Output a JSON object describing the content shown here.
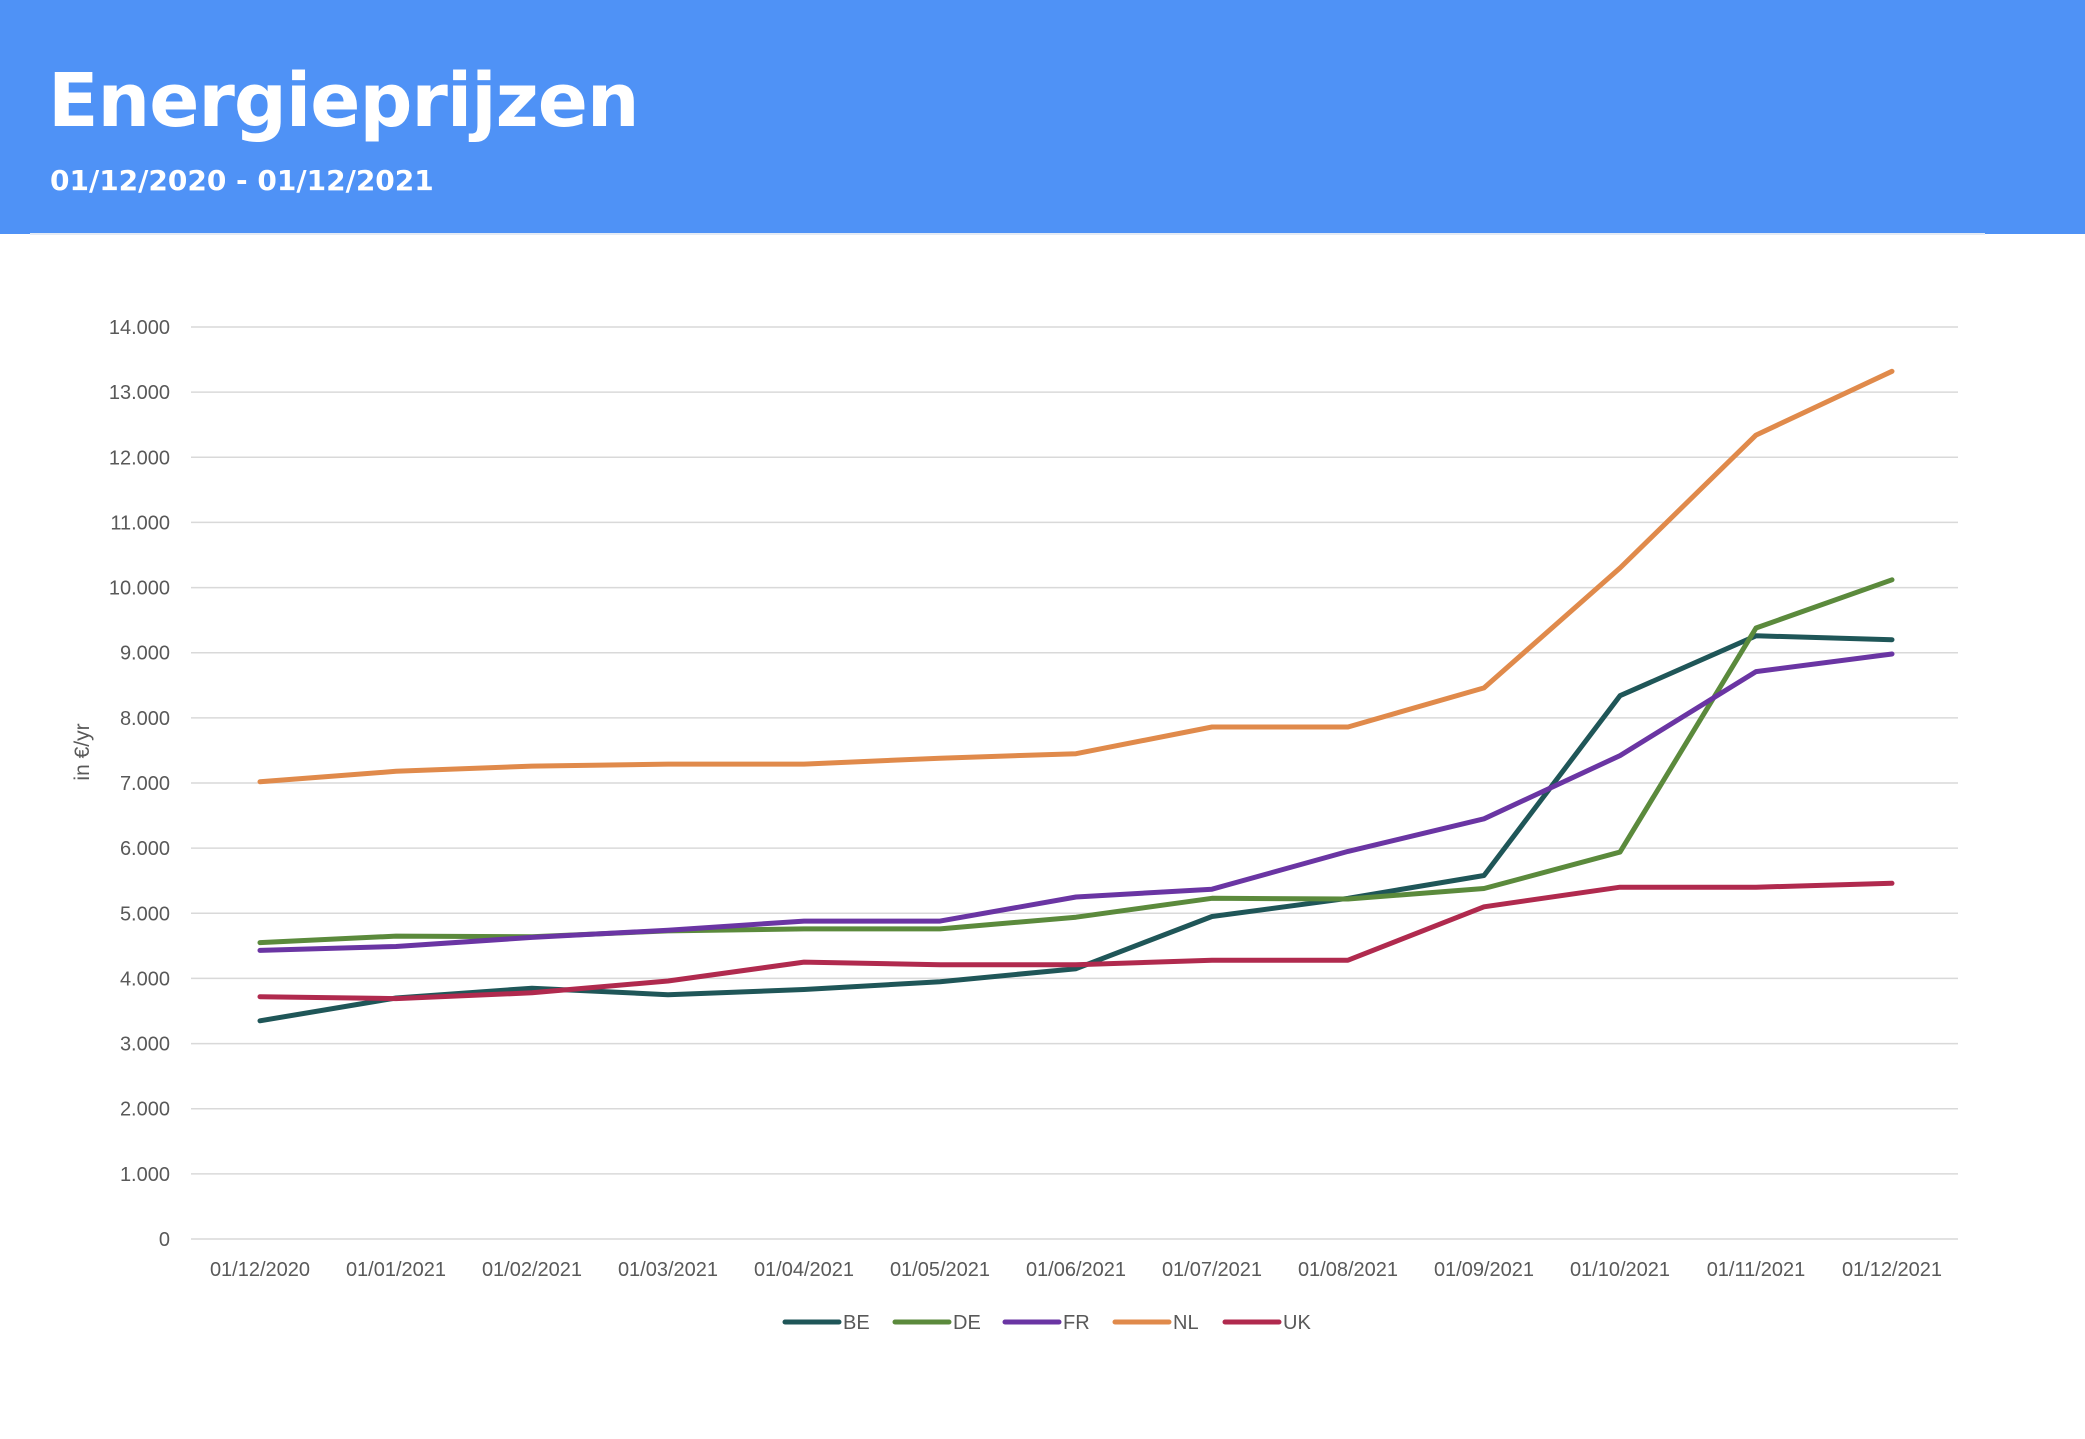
{
  "header": {
    "title": "Energieprijzen",
    "subtitle": "01/12/2020 - 01/12/2021"
  },
  "colors": {
    "header_background": "#4f92f6",
    "header_text": "#ffffff",
    "gridline": "#d9d9d9",
    "axis_text": "#595959"
  },
  "chart_data": {
    "type": "line",
    "title": "",
    "xlabel": "",
    "ylabel": "in €/yr",
    "ylim": [
      0,
      14000
    ],
    "yticks": [
      0,
      1000,
      2000,
      3000,
      4000,
      5000,
      6000,
      7000,
      8000,
      9000,
      10000,
      11000,
      12000,
      13000,
      14000
    ],
    "ytick_labels": [
      "0",
      "1.000",
      "2.000",
      "3.000",
      "4.000",
      "5.000",
      "6.000",
      "7.000",
      "8.000",
      "9.000",
      "10.000",
      "11.000",
      "12.000",
      "13.000",
      "14.000"
    ],
    "grid": true,
    "legend_position": "bottom",
    "categories": [
      "01/12/2020",
      "01/01/2021",
      "01/02/2021",
      "01/03/2021",
      "01/04/2021",
      "01/05/2021",
      "01/06/2021",
      "01/07/2021",
      "01/08/2021",
      "01/09/2021",
      "01/10/2021",
      "01/11/2021",
      "01/12/2021"
    ],
    "series": [
      {
        "name": "BE",
        "color": "#1f5658",
        "values": [
          3350,
          3700,
          3850,
          3750,
          3830,
          3950,
          4150,
          4950,
          5230,
          5580,
          8340,
          9260,
          9200
        ]
      },
      {
        "name": "DE",
        "color": "#5b8a3c",
        "values": [
          4550,
          4650,
          4640,
          4730,
          4760,
          4760,
          4940,
          5230,
          5220,
          5380,
          5940,
          9380,
          10120
        ]
      },
      {
        "name": "FR",
        "color": "#6a35a3",
        "values": [
          4430,
          4490,
          4630,
          4740,
          4880,
          4880,
          5250,
          5370,
          5950,
          6450,
          7420,
          8710,
          8980
        ]
      },
      {
        "name": "NL",
        "color": "#e08a4b",
        "values": [
          7020,
          7180,
          7260,
          7290,
          7290,
          7380,
          7450,
          7860,
          7860,
          8460,
          10300,
          12340,
          13320
        ]
      },
      {
        "name": "UK",
        "color": "#b02a4e",
        "values": [
          3720,
          3690,
          3780,
          3960,
          4250,
          4210,
          4210,
          4280,
          4280,
          5100,
          5400,
          5400,
          5460
        ]
      }
    ]
  }
}
